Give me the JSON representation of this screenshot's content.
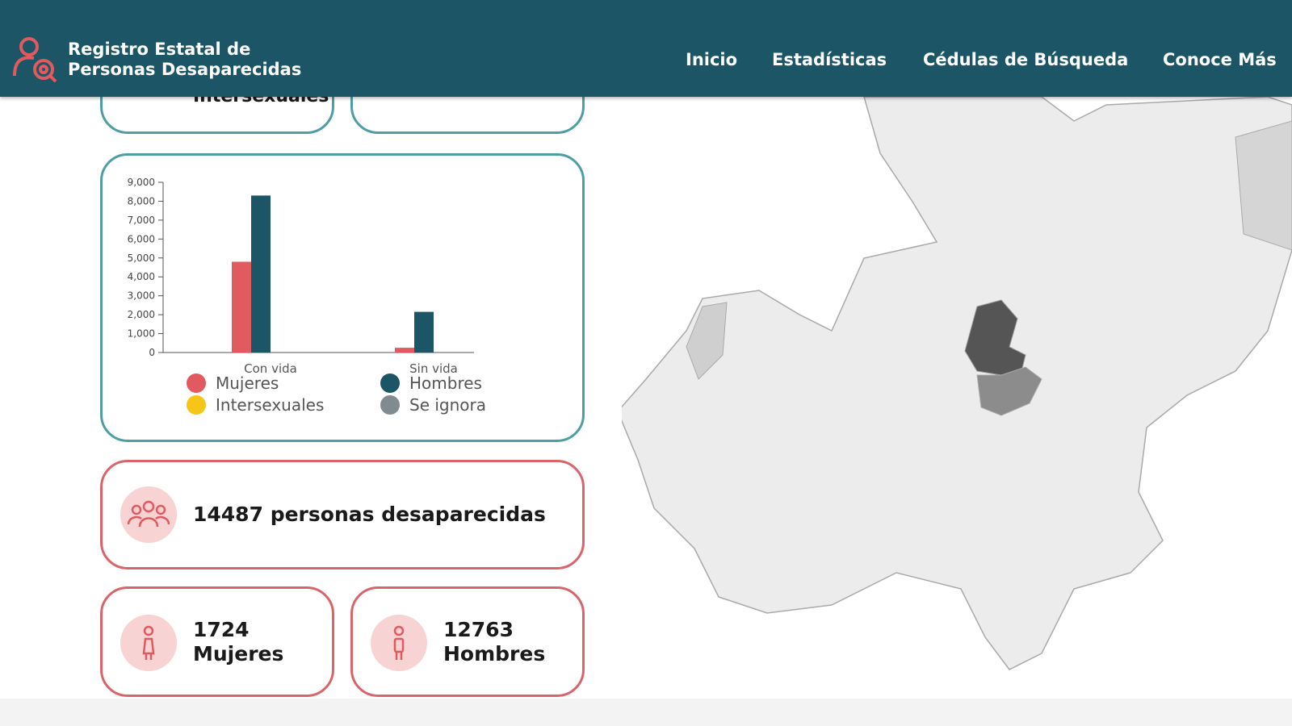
{
  "header": {
    "title_line1": "Registro Estatal de",
    "title_line2": "Personas Desaparecidas",
    "nav": [
      "Inicio",
      "Estadísticas",
      "Cédulas de Búsqueda",
      "Conoce Más"
    ]
  },
  "top_cards": {
    "left_label": "Intersexuales"
  },
  "chart_data": {
    "type": "bar",
    "categories": [
      "Con vida",
      "Sin vida"
    ],
    "series": [
      {
        "name": "Mujeres",
        "color": "#e05a5f",
        "values": [
          4800,
          250
        ]
      },
      {
        "name": "Hombres",
        "color": "#1b5566",
        "values": [
          8300,
          2150
        ]
      },
      {
        "name": "Intersexuales",
        "color": "#f5c518",
        "values": [
          0,
          0
        ]
      },
      {
        "name": "Se ignora",
        "color": "#7f8a91",
        "values": [
          0,
          0
        ]
      }
    ],
    "ylim": [
      0,
      9000
    ],
    "yticks": [
      0,
      {
        "value": 1000,
        "label": "1,000"
      },
      {
        "value": 2000,
        "label": "2,000"
      },
      {
        "value": 3000,
        "label": "3,000"
      },
      {
        "value": 4000,
        "label": "4,000"
      },
      {
        "value": 5000,
        "label": "5,000"
      },
      {
        "value": 6000,
        "label": "6,000"
      },
      {
        "value": 7000,
        "label": "7,000"
      },
      {
        "value": 8000,
        "label": "8,000"
      },
      {
        "value": 9000,
        "label": "9,000"
      }
    ],
    "legend": "bottom"
  },
  "stats": {
    "total": {
      "value": "14487",
      "label": "personas desaparecidas"
    },
    "women": {
      "value": "1724",
      "label": "Mujeres"
    },
    "men": {
      "value": "12763",
      "label": "Hombres"
    }
  }
}
